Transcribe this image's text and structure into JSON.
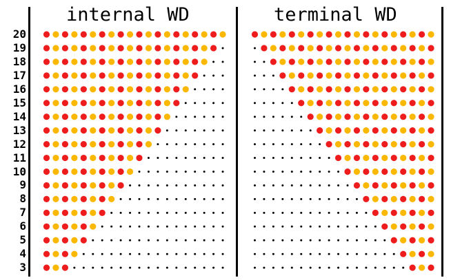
{
  "panels": [
    {
      "title": "internal WD",
      "align": "left"
    },
    {
      "title": "terminal WD",
      "align": "right"
    }
  ],
  "rows": [
    20,
    19,
    18,
    17,
    16,
    15,
    14,
    13,
    12,
    11,
    10,
    9,
    8,
    7,
    6,
    5,
    4,
    3
  ],
  "columns": 20,
  "colors": {
    "red": "#ee1c1c",
    "orange": "#fbb800",
    "dot": "#000000"
  },
  "pattern": "colored circles alternate red/orange starting with red; remaining positions shown as small black dots"
}
